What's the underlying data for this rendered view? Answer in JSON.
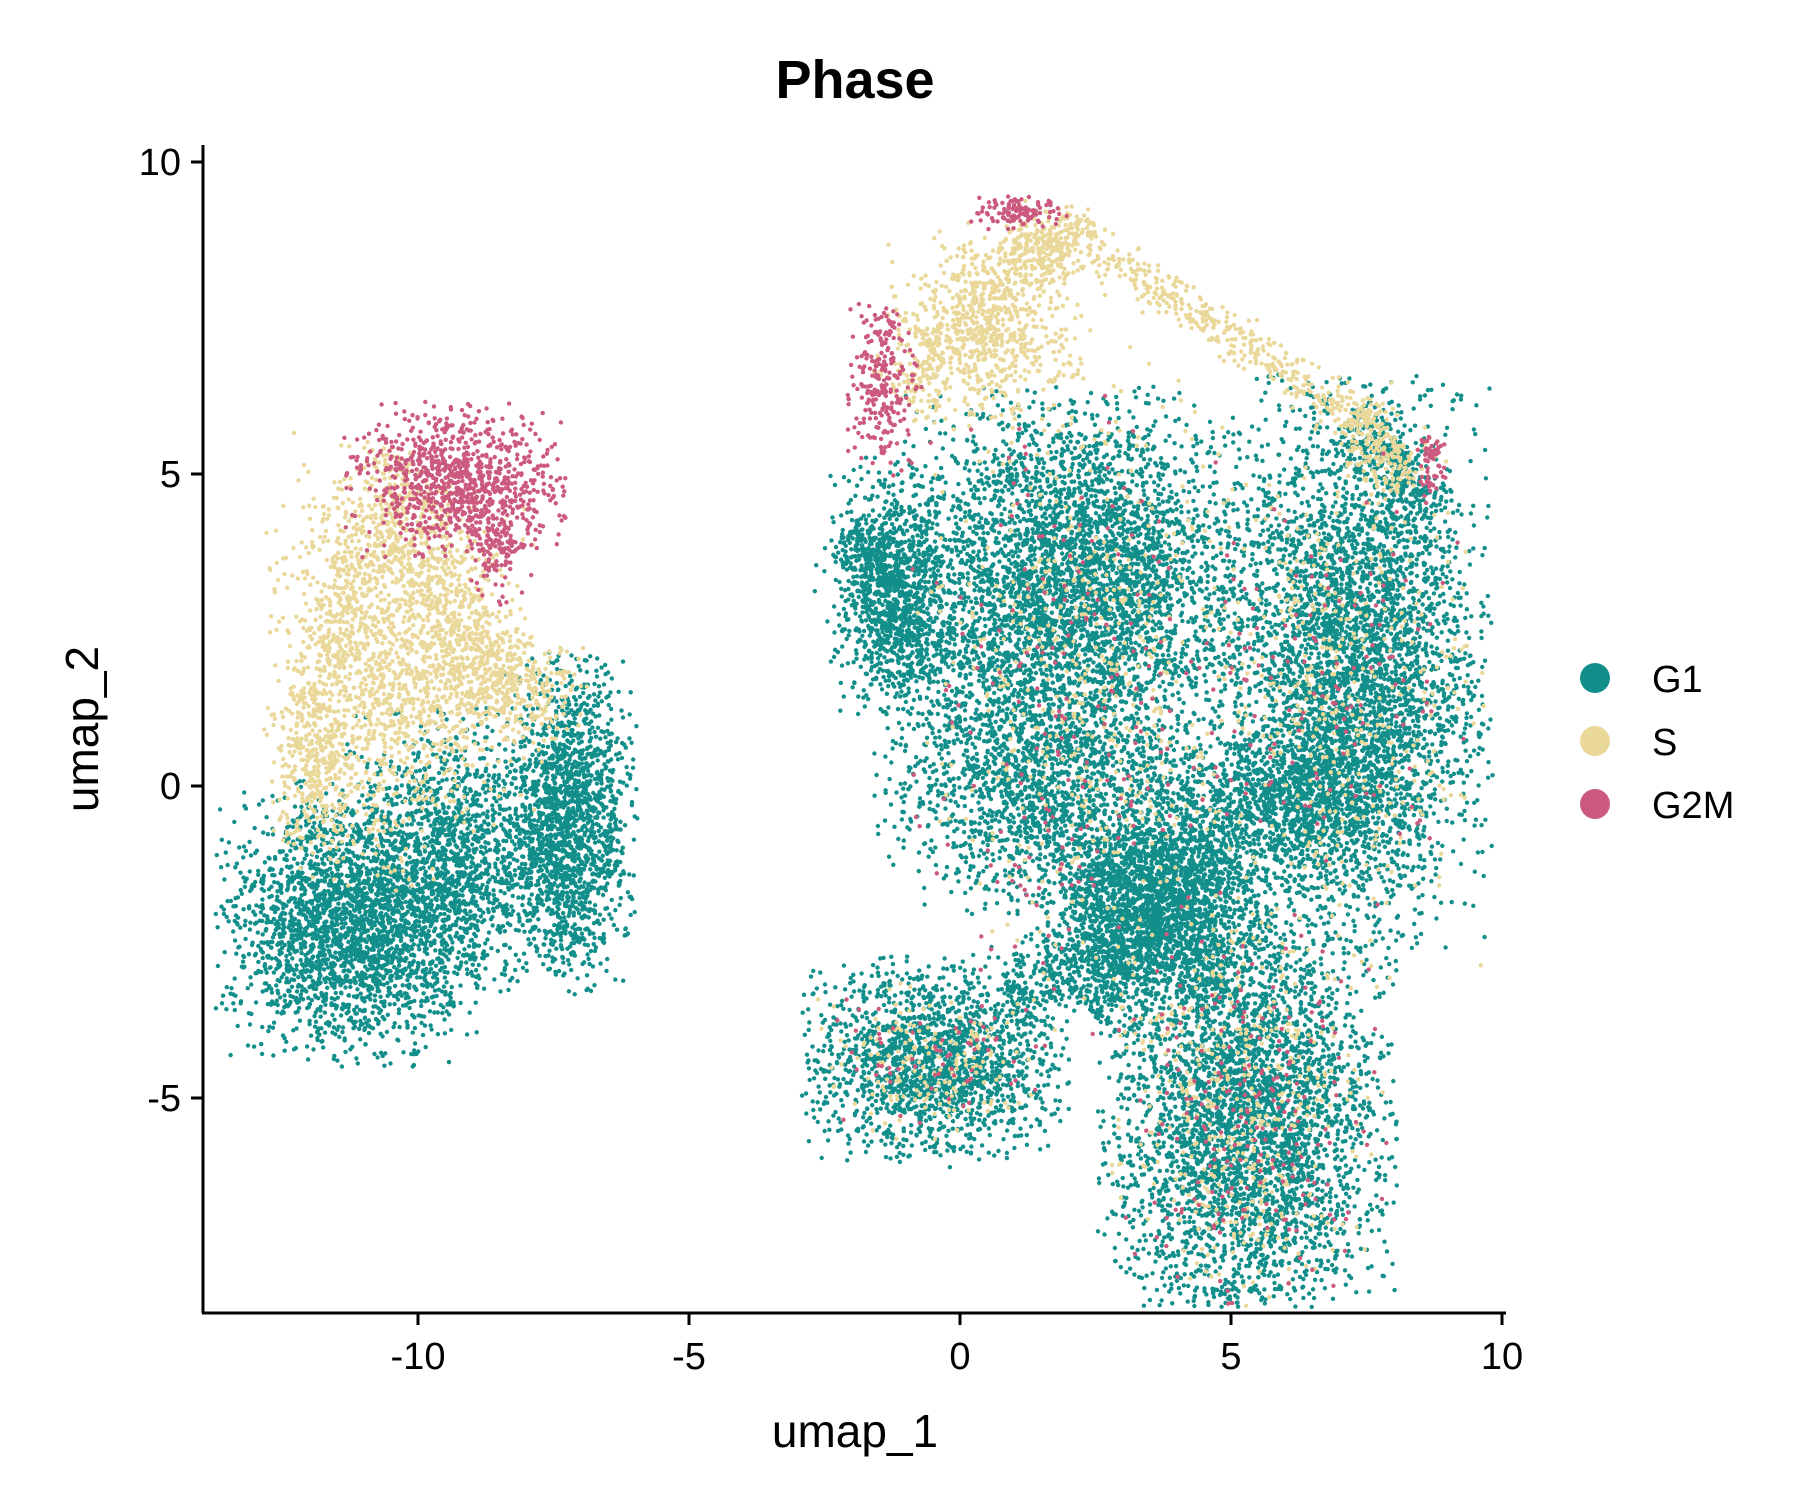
{
  "chart_data": {
    "type": "scatter",
    "title": "Phase",
    "xlabel": "umap_1",
    "ylabel": "umap_2",
    "xlim": [
      -14.1,
      10.1
    ],
    "ylim": [
      -8.2,
      10.3
    ],
    "x_ticks": [
      -10,
      -5,
      0,
      5,
      10
    ],
    "y_ticks": [
      -5,
      0,
      5,
      10
    ],
    "x_tick_labels": [
      "-10",
      "-5",
      "0",
      "5",
      "10"
    ],
    "y_tick_labels": [
      "-5",
      "0",
      "5",
      "10"
    ],
    "grid": false,
    "legend_position": "right",
    "series": [
      {
        "name": "G1",
        "color": "#128f8b"
      },
      {
        "name": "S",
        "color": "#ead89a"
      },
      {
        "name": "G2M",
        "color": "#cc5a7e"
      }
    ],
    "clusters": [
      {
        "series": "G1",
        "cx": -11.2,
        "cy": -2.2,
        "sx": 1.1,
        "sy": 1.0,
        "n": 2600
      },
      {
        "series": "G1",
        "cx": -9.3,
        "cy": -1.0,
        "sx": 0.9,
        "sy": 1.0,
        "n": 1200
      },
      {
        "series": "G1",
        "cx": -7.2,
        "cy": -0.6,
        "sx": 0.55,
        "sy": 1.2,
        "n": 1700
      },
      {
        "series": "S",
        "cx": -11.0,
        "cy": 2.0,
        "sx": 0.8,
        "sy": 1.6,
        "n": 900
      },
      {
        "series": "S",
        "cx": -9.6,
        "cy": 2.0,
        "sx": 0.9,
        "sy": 1.2,
        "n": 700
      },
      {
        "series": "S",
        "cx": -8.3,
        "cy": 1.6,
        "sx": 0.7,
        "sy": 0.4,
        "n": 300
      },
      {
        "series": "S",
        "cx": -11.8,
        "cy": 0.2,
        "sx": 0.4,
        "sy": 0.6,
        "n": 250
      },
      {
        "series": "G2M",
        "cx": -9.3,
        "cy": 4.9,
        "sx": 0.9,
        "sy": 0.55,
        "n": 900
      },
      {
        "series": "G2M",
        "cx": -8.5,
        "cy": 3.8,
        "sx": 0.3,
        "sy": 0.5,
        "n": 120
      },
      {
        "series": "G1",
        "cx": 2.1,
        "cy": 3.2,
        "sx": 1.6,
        "sy": 1.4,
        "n": 4200
      },
      {
        "series": "G1",
        "cx": 1.4,
        "cy": 0.0,
        "sx": 1.3,
        "sy": 0.9,
        "n": 1500
      },
      {
        "series": "G1",
        "cx": 3.6,
        "cy": -1.6,
        "sx": 1.0,
        "sy": 0.8,
        "n": 1200
      },
      {
        "series": "G1",
        "cx": 7.3,
        "cy": 2.0,
        "sx": 1.1,
        "sy": 2.0,
        "n": 4000
      },
      {
        "series": "G1",
        "cx": 5.9,
        "cy": -0.3,
        "sx": 1.2,
        "sy": 0.6,
        "n": 1200
      },
      {
        "series": "G1",
        "cx": 5.3,
        "cy": -5.3,
        "sx": 1.2,
        "sy": 1.7,
        "n": 3800
      },
      {
        "series": "G1",
        "cx": -0.5,
        "cy": -4.4,
        "sx": 1.1,
        "sy": 0.75,
        "n": 1700
      },
      {
        "series": "G1",
        "cx": -1.3,
        "cy": 3.2,
        "sx": 0.5,
        "sy": 0.9,
        "n": 800
      },
      {
        "series": "S",
        "cx": 0.5,
        "cy": 7.3,
        "sx": 0.8,
        "sy": 0.7,
        "n": 600
      },
      {
        "series": "S",
        "cx": 1.6,
        "cy": 8.6,
        "sx": 0.4,
        "sy": 0.3,
        "n": 200
      },
      {
        "series": "S",
        "cx": 2.4,
        "cy": 2.0,
        "sx": 1.4,
        "sy": 2.5,
        "n": 500
      },
      {
        "series": "S",
        "cx": 7.0,
        "cy": 1.5,
        "sx": 1.2,
        "sy": 2.2,
        "n": 420
      },
      {
        "series": "S",
        "cx": 5.3,
        "cy": -5.0,
        "sx": 1.1,
        "sy": 1.5,
        "n": 420
      },
      {
        "series": "S",
        "cx": -0.5,
        "cy": -4.4,
        "sx": 1.0,
        "sy": 0.6,
        "n": 170
      },
      {
        "series": "G2M",
        "cx": -1.4,
        "cy": 6.4,
        "sx": 0.3,
        "sy": 0.65,
        "n": 250
      },
      {
        "series": "G2M",
        "cx": 1.1,
        "cy": 9.2,
        "sx": 0.4,
        "sy": 0.12,
        "n": 110
      },
      {
        "series": "G2M",
        "cx": 8.7,
        "cy": 5.1,
        "sx": 0.12,
        "sy": 0.25,
        "n": 60
      },
      {
        "series": "G2M",
        "cx": 5.4,
        "cy": -5.3,
        "sx": 1.1,
        "sy": 1.5,
        "n": 200
      },
      {
        "series": "G2M",
        "cx": 2.2,
        "cy": 1.0,
        "sx": 1.5,
        "sy": 2.5,
        "n": 220
      },
      {
        "series": "G2M",
        "cx": 7.0,
        "cy": 1.5,
        "sx": 1.0,
        "sy": 1.8,
        "n": 120
      },
      {
        "series": "G2M",
        "cx": -0.5,
        "cy": -4.4,
        "sx": 0.9,
        "sy": 0.5,
        "n": 60
      }
    ],
    "bridges": [
      {
        "series": "S",
        "from": [
          1.8,
          9.0
        ],
        "to": [
          7.5,
          5.8
        ],
        "spread": 0.18,
        "n": 450
      },
      {
        "series": "S",
        "from": [
          -1.2,
          6.2
        ],
        "to": [
          1.7,
          8.9
        ],
        "spread": 0.35,
        "n": 350
      },
      {
        "series": "S",
        "from": [
          7.3,
          6.0
        ],
        "to": [
          8.2,
          4.8
        ],
        "spread": 0.25,
        "n": 200
      },
      {
        "series": "G1",
        "from": [
          7.2,
          5.9
        ],
        "to": [
          8.8,
          4.4
        ],
        "spread": 0.25,
        "n": 250
      },
      {
        "series": "G1",
        "from": [
          -2.0,
          4.2
        ],
        "to": [
          -0.5,
          1.8
        ],
        "spread": 0.4,
        "n": 450
      },
      {
        "series": "G1",
        "from": [
          2.4,
          -1.2
        ],
        "to": [
          4.8,
          -3.4
        ],
        "spread": 0.5,
        "n": 600
      },
      {
        "series": "G1",
        "from": [
          4.8,
          -1.0
        ],
        "to": [
          2.3,
          -3.5
        ],
        "spread": 0.45,
        "n": 700
      },
      {
        "series": "G1",
        "from": [
          0.9,
          -3.4
        ],
        "to": [
          3.0,
          -2.4
        ],
        "spread": 0.35,
        "n": 350
      },
      {
        "series": "S",
        "from": [
          -10.3,
          5.3
        ],
        "to": [
          -12.3,
          0.6
        ],
        "spread": 0.35,
        "n": 350
      },
      {
        "series": "S",
        "from": [
          -10.5,
          4.6
        ],
        "to": [
          -8.6,
          1.6
        ],
        "spread": 0.4,
        "n": 350
      }
    ]
  }
}
